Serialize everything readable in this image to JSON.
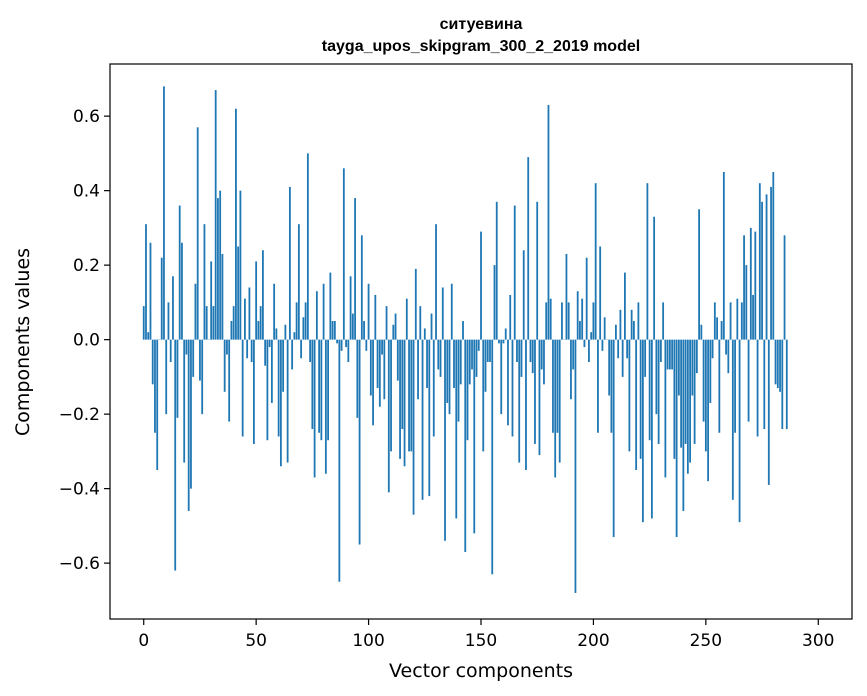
{
  "chart_data": {
    "type": "bar",
    "title": "ситуевина",
    "subtitle": "tayga_upos_skipgram_300_2_2019 model",
    "xlabel": "Vector components",
    "ylabel": "Components values",
    "xlim": [
      -15,
      315
    ],
    "ylim": [
      -0.75,
      0.74
    ],
    "xticks": [
      0,
      50,
      100,
      150,
      200,
      250,
      300
    ],
    "yticks": [
      -0.6,
      -0.4,
      -0.2,
      0.0,
      0.2,
      0.4,
      0.6
    ],
    "ytick_labels": [
      "−0.6",
      "−0.4",
      "−0.2",
      "0.0",
      "0.2",
      "0.4",
      "0.6"
    ],
    "bar_color": "#1f77b4",
    "values": [
      0.09,
      0.31,
      0.02,
      0.26,
      -0.12,
      -0.25,
      -0.35,
      0.0,
      0.22,
      0.68,
      -0.2,
      0.1,
      -0.06,
      0.17,
      -0.62,
      -0.21,
      0.36,
      0.26,
      -0.33,
      -0.04,
      -0.46,
      -0.4,
      -0.1,
      0.15,
      0.57,
      -0.11,
      -0.2,
      0.31,
      0.09,
      0.0,
      0.21,
      0.09,
      0.67,
      0.38,
      0.4,
      0.23,
      -0.14,
      -0.04,
      -0.22,
      0.05,
      0.09,
      0.62,
      0.25,
      0.4,
      -0.26,
      0.11,
      -0.05,
      0.14,
      -0.06,
      -0.28,
      0.21,
      0.05,
      0.09,
      0.24,
      -0.07,
      -0.27,
      -0.02,
      -0.17,
      0.15,
      0.03,
      -0.26,
      -0.34,
      -0.14,
      0.04,
      -0.33,
      0.41,
      -0.08,
      0.02,
      0.1,
      0.31,
      -0.05,
      0.06,
      0.1,
      0.5,
      -0.06,
      -0.24,
      -0.37,
      0.13,
      -0.25,
      -0.27,
      0.15,
      -0.36,
      -0.27,
      0.18,
      0.05,
      0.05,
      -0.01,
      -0.65,
      -0.03,
      0.46,
      -0.02,
      -0.06,
      0.17,
      0.07,
      0.38,
      -0.21,
      -0.55,
      0.28,
      0.05,
      -0.03,
      0.15,
      -0.15,
      -0.23,
      0.12,
      -0.13,
      -0.18,
      -0.04,
      -0.16,
      0.09,
      -0.41,
      -0.3,
      0.04,
      0.07,
      -0.11,
      -0.32,
      -0.24,
      -0.34,
      0.11,
      -0.3,
      -0.3,
      -0.47,
      0.19,
      -0.16,
      0.09,
      -0.43,
      0.03,
      -0.13,
      -0.42,
      0.07,
      -0.26,
      0.31,
      -0.08,
      -0.1,
      0.14,
      -0.54,
      -0.17,
      -0.2,
      0.15,
      -0.13,
      -0.48,
      -0.22,
      -0.12,
      0.05,
      -0.57,
      -0.27,
      -0.12,
      -0.08,
      -0.52,
      -0.1,
      -0.03,
      0.29,
      -0.3,
      -0.14,
      -0.06,
      -0.06,
      -0.63,
      0.2,
      0.37,
      -0.01,
      -0.2,
      -0.01,
      0.03,
      -0.23,
      0.12,
      -0.26,
      0.36,
      -0.06,
      -0.33,
      -0.1,
      0.24,
      -0.35,
      0.49,
      -0.06,
      -0.09,
      -0.28,
      0.37,
      -0.31,
      -0.08,
      -0.12,
      0.1,
      0.63,
      0.11,
      -0.25,
      -0.37,
      -0.25,
      -0.33,
      0.1,
      0.0,
      0.23,
      0.1,
      -0.16,
      -0.08,
      -0.68,
      0.13,
      0.05,
      0.11,
      -0.02,
      0.22,
      -0.06,
      0.02,
      0.1,
      0.42,
      -0.25,
      0.25,
      -0.03,
      0.06,
      0.0,
      -0.15,
      -0.25,
      -0.53,
      0.04,
      -0.05,
      0.08,
      -0.1,
      0.18,
      -0.05,
      -0.3,
      0.08,
      0.05,
      -0.35,
      0.1,
      -0.32,
      -0.49,
      -0.1,
      0.42,
      -0.27,
      -0.48,
      0.33,
      -0.2,
      -0.28,
      -0.06,
      0.1,
      -0.37,
      -0.08,
      -0.08,
      -0.08,
      -0.32,
      -0.53,
      -0.15,
      -0.29,
      -0.46,
      -0.28,
      -0.36,
      -0.33,
      -0.15,
      -0.28,
      -0.09,
      0.35,
      0.04,
      -0.22,
      -0.3,
      -0.38,
      -0.17,
      -0.05,
      0.1,
      0.06,
      -0.25,
      0.05,
      0.45,
      -0.04,
      -0.09,
      0.1,
      -0.43,
      -0.25,
      0.11,
      -0.49,
      0.1,
      0.28,
      0.2,
      -0.22,
      0.3,
      0.12,
      0.29,
      -0.26,
      0.42,
      0.37,
      -0.24,
      0.39,
      -0.39,
      0.41,
      0.45,
      -0.12,
      -0.13,
      -0.14,
      -0.24,
      0.28,
      -0.24
    ]
  }
}
